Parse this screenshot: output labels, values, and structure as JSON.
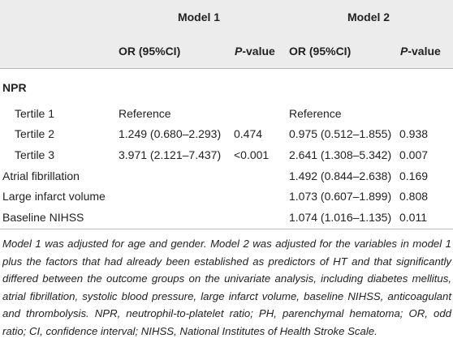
{
  "table": {
    "groups": [
      "Model 1",
      "Model 2"
    ],
    "subheaders": [
      "OR (95%CI)",
      "P-value",
      "OR (95%CI)",
      "P-value"
    ],
    "rows": [
      [
        "NPR",
        null,
        null,
        null,
        null
      ],
      [
        "Tertile 1",
        "Reference",
        null,
        "Reference",
        null
      ],
      [
        "Tertile 2",
        "1.249 (0.680–2.293)",
        "0.474",
        "0.975 (0.512–1.855)",
        "0.938"
      ],
      [
        "Tertile 3",
        "3.971 (2.121–7.437)",
        "<0.001",
        "2.641 (1.308–5.342)",
        "0.007"
      ],
      [
        "Atrial fibrillation",
        null,
        null,
        "1.492 (0.844–2.638)",
        "0.169"
      ],
      [
        "Large infarct volume",
        null,
        null,
        "1.073 (0.607–1.899)",
        "0.808"
      ],
      [
        "Baseline NIHSS",
        null,
        null,
        "1.074 (1.016–1.135)",
        "0.011"
      ]
    ],
    "footnote": "Model 1 was adjusted for age and gender. Model 2 was adjusted for the variables in model 1 plus the factors that had already been established as predictors of HT and that significantly differed between the outcome groups on the univariate analysis, including diabetes mellitus, atrial fibrillation, systolic blood pressure, large infarct volume, baseline NIHSS, anticoagulant and thrombolysis. NPR, neutrophil-to-platelet ratio; PH, parenchymal hematoma; OR, odd ratio; CI, confidence interval; NIHSS, National Institutes of Health Stroke Scale."
  }
}
